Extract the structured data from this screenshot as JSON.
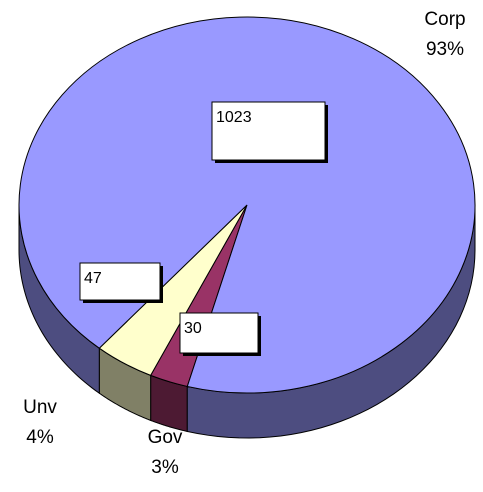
{
  "chart_data": {
    "type": "pie3d",
    "categories": [
      "Corp",
      "Unv",
      "Gov"
    ],
    "values": [
      1023,
      47,
      30
    ],
    "percent_labels": [
      "93%",
      "4%",
      "3%"
    ],
    "colors": [
      "#9999ff",
      "#ffffcc",
      "#993366"
    ],
    "side_colors": [
      "#4d4d80",
      "#808066",
      "#4d1a33"
    ]
  }
}
